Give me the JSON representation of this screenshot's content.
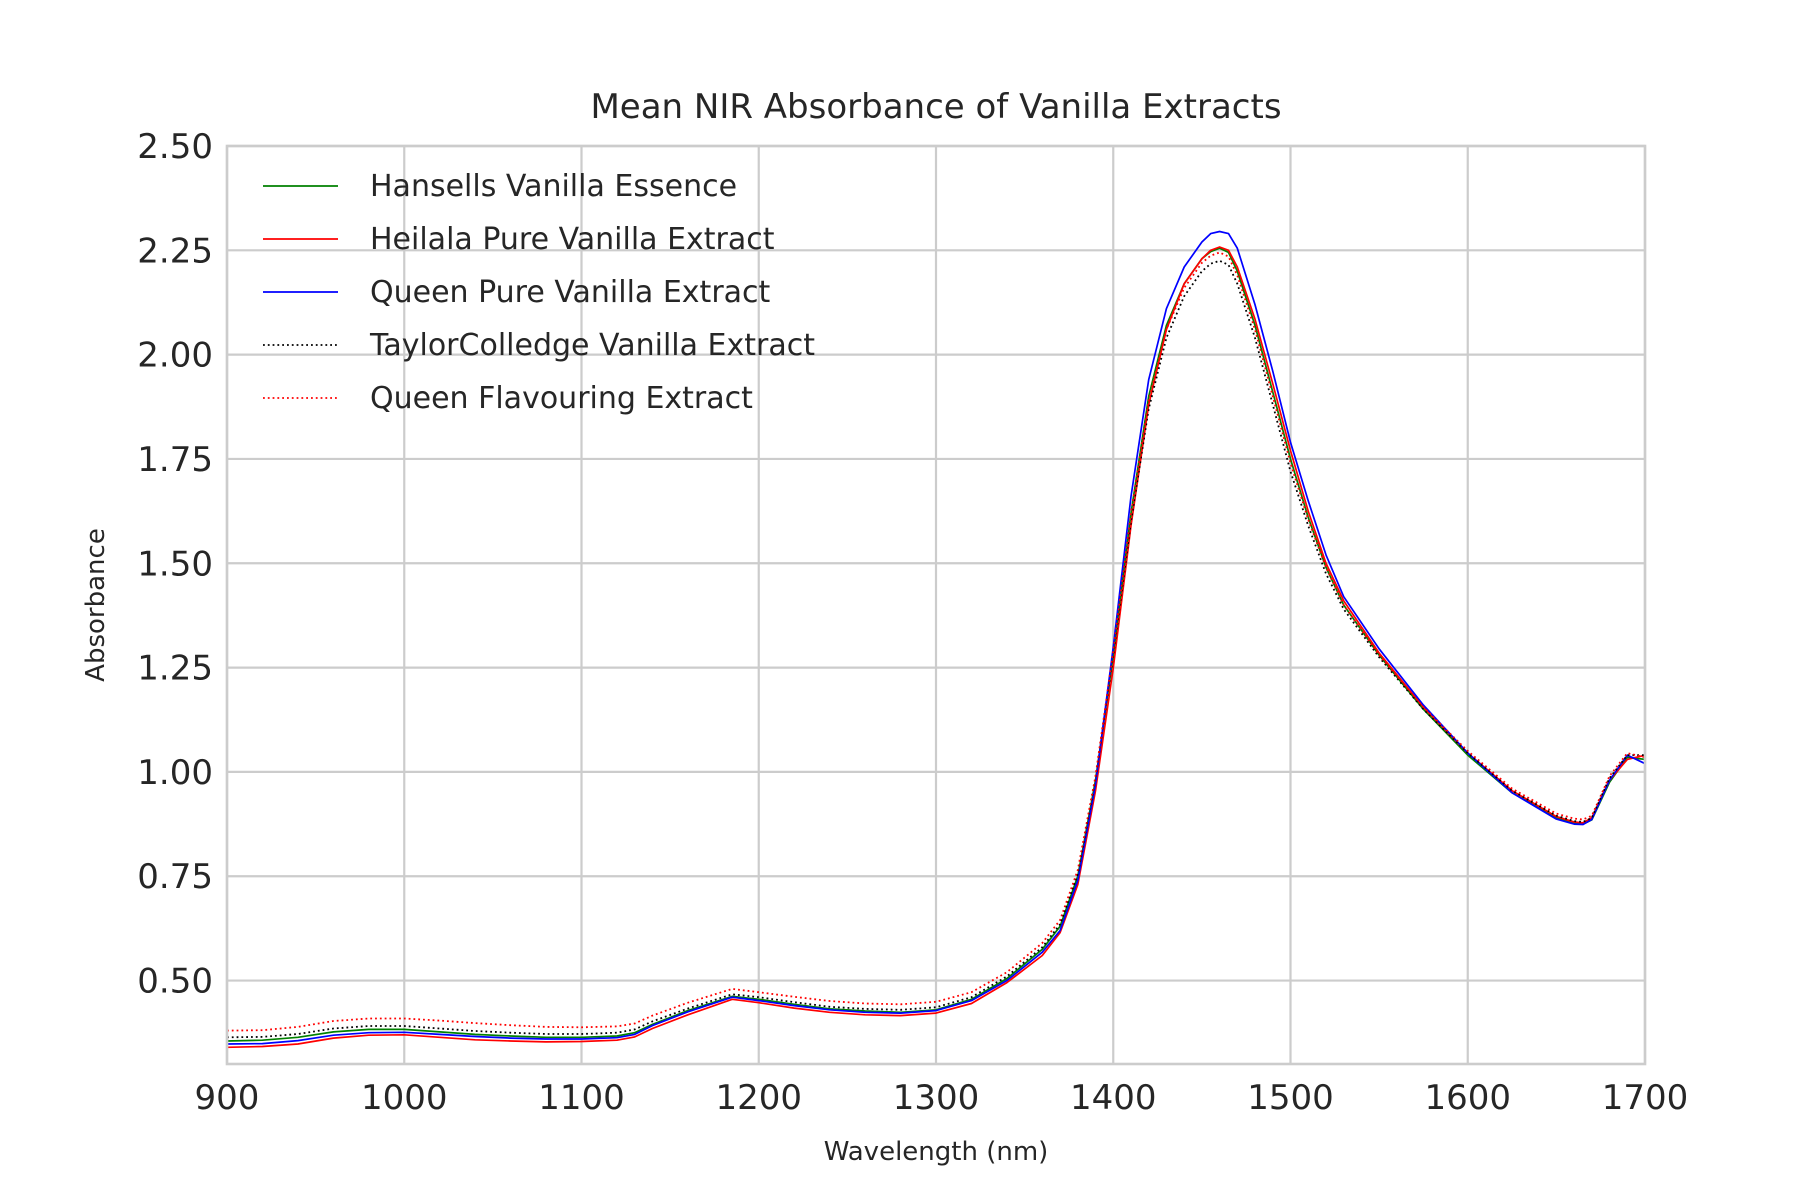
{
  "chart_data": {
    "type": "line",
    "title": "Mean NIR Absorbance of Vanilla Extracts",
    "xlabel": "Wavelength (nm)",
    "ylabel": "Absorbance",
    "xlim": [
      900,
      1700
    ],
    "ylim": [
      0.3,
      2.5
    ],
    "xticks": [
      900,
      1000,
      1100,
      1200,
      1300,
      1400,
      1500,
      1600,
      1700
    ],
    "xtick_labels": [
      "900",
      "1000",
      "1100",
      "1200",
      "1300",
      "1400",
      "1500",
      "1600",
      "1700"
    ],
    "yticks": [
      0.5,
      0.75,
      1.0,
      1.25,
      1.5,
      1.75,
      2.0,
      2.25,
      2.5
    ],
    "ytick_labels": [
      "0.50",
      "0.75",
      "1.00",
      "1.25",
      "1.50",
      "1.75",
      "2.00",
      "2.25",
      "2.50"
    ],
    "grid": true,
    "legend_position": "top-left",
    "x": [
      900,
      920,
      940,
      960,
      980,
      1000,
      1020,
      1040,
      1060,
      1080,
      1100,
      1120,
      1130,
      1140,
      1160,
      1185,
      1200,
      1220,
      1240,
      1260,
      1280,
      1300,
      1320,
      1340,
      1360,
      1370,
      1380,
      1390,
      1400,
      1410,
      1420,
      1430,
      1440,
      1450,
      1455,
      1460,
      1465,
      1470,
      1480,
      1490,
      1500,
      1510,
      1520,
      1530,
      1550,
      1575,
      1600,
      1625,
      1650,
      1660,
      1665,
      1670,
      1680,
      1690,
      1700
    ],
    "series": [
      {
        "name": "Hansells Vanilla Essence",
        "color": "#008000",
        "dash": "solid",
        "values": [
          0.355,
          0.357,
          0.364,
          0.377,
          0.383,
          0.383,
          0.377,
          0.371,
          0.367,
          0.364,
          0.364,
          0.367,
          0.375,
          0.395,
          0.428,
          0.462,
          0.455,
          0.443,
          0.432,
          0.427,
          0.424,
          0.43,
          0.455,
          0.505,
          0.575,
          0.63,
          0.75,
          0.98,
          1.28,
          1.62,
          1.9,
          2.07,
          2.17,
          2.23,
          2.247,
          2.255,
          2.245,
          2.2,
          2.07,
          1.91,
          1.75,
          1.61,
          1.49,
          1.4,
          1.28,
          1.15,
          1.04,
          0.95,
          0.89,
          0.877,
          0.875,
          0.885,
          0.975,
          1.035,
          1.03
        ]
      },
      {
        "name": "Heilala Pure Vanilla Extract",
        "color": "#ff0000",
        "dash": "solid",
        "values": [
          0.34,
          0.342,
          0.348,
          0.362,
          0.369,
          0.37,
          0.364,
          0.358,
          0.355,
          0.353,
          0.354,
          0.357,
          0.365,
          0.385,
          0.418,
          0.455,
          0.447,
          0.434,
          0.424,
          0.418,
          0.416,
          0.422,
          0.445,
          0.495,
          0.56,
          0.615,
          0.73,
          0.955,
          1.25,
          1.59,
          1.88,
          2.06,
          2.17,
          2.23,
          2.25,
          2.258,
          2.25,
          2.21,
          2.085,
          1.93,
          1.77,
          1.625,
          1.5,
          1.41,
          1.285,
          1.155,
          1.045,
          0.955,
          0.893,
          0.88,
          0.878,
          0.89,
          0.98,
          1.03,
          1.04
        ]
      },
      {
        "name": "Queen Pure Vanilla Extract",
        "color": "#0000ff",
        "dash": "solid",
        "values": [
          0.348,
          0.349,
          0.356,
          0.369,
          0.375,
          0.376,
          0.371,
          0.366,
          0.362,
          0.36,
          0.36,
          0.363,
          0.371,
          0.392,
          0.425,
          0.46,
          0.452,
          0.44,
          0.43,
          0.424,
          0.422,
          0.428,
          0.452,
          0.5,
          0.568,
          0.62,
          0.74,
          0.97,
          1.3,
          1.66,
          1.94,
          2.11,
          2.21,
          2.27,
          2.29,
          2.295,
          2.29,
          2.255,
          2.12,
          1.96,
          1.79,
          1.65,
          1.52,
          1.42,
          1.295,
          1.16,
          1.045,
          0.95,
          0.887,
          0.875,
          0.874,
          0.886,
          0.98,
          1.04,
          1.02
        ]
      },
      {
        "name": "TaylorColledge Vanilla Extract",
        "color": "#000000",
        "dash": "dotted",
        "values": [
          0.364,
          0.365,
          0.372,
          0.385,
          0.391,
          0.391,
          0.385,
          0.379,
          0.375,
          0.372,
          0.372,
          0.375,
          0.383,
          0.402,
          0.433,
          0.467,
          0.46,
          0.448,
          0.437,
          0.432,
          0.43,
          0.436,
          0.46,
          0.51,
          0.58,
          0.635,
          0.755,
          0.985,
          1.28,
          1.6,
          1.87,
          2.04,
          2.14,
          2.2,
          2.218,
          2.225,
          2.215,
          2.17,
          2.04,
          1.88,
          1.72,
          1.59,
          1.475,
          1.39,
          1.275,
          1.15,
          1.045,
          0.955,
          0.895,
          0.882,
          0.88,
          0.89,
          0.985,
          1.04,
          1.04
        ]
      },
      {
        "name": "Queen Flavouring Extract",
        "color": "#ff0000",
        "dash": "dotted",
        "values": [
          0.38,
          0.381,
          0.389,
          0.403,
          0.409,
          0.409,
          0.404,
          0.398,
          0.393,
          0.389,
          0.388,
          0.39,
          0.397,
          0.416,
          0.447,
          0.48,
          0.472,
          0.461,
          0.451,
          0.445,
          0.443,
          0.449,
          0.472,
          0.52,
          0.59,
          0.645,
          0.765,
          0.99,
          1.29,
          1.62,
          1.89,
          2.06,
          2.16,
          2.22,
          2.237,
          2.245,
          2.235,
          2.19,
          2.06,
          1.9,
          1.74,
          1.605,
          1.49,
          1.4,
          1.28,
          1.155,
          1.05,
          0.96,
          0.9,
          0.888,
          0.886,
          0.895,
          0.99,
          1.045,
          1.035
        ]
      }
    ]
  }
}
